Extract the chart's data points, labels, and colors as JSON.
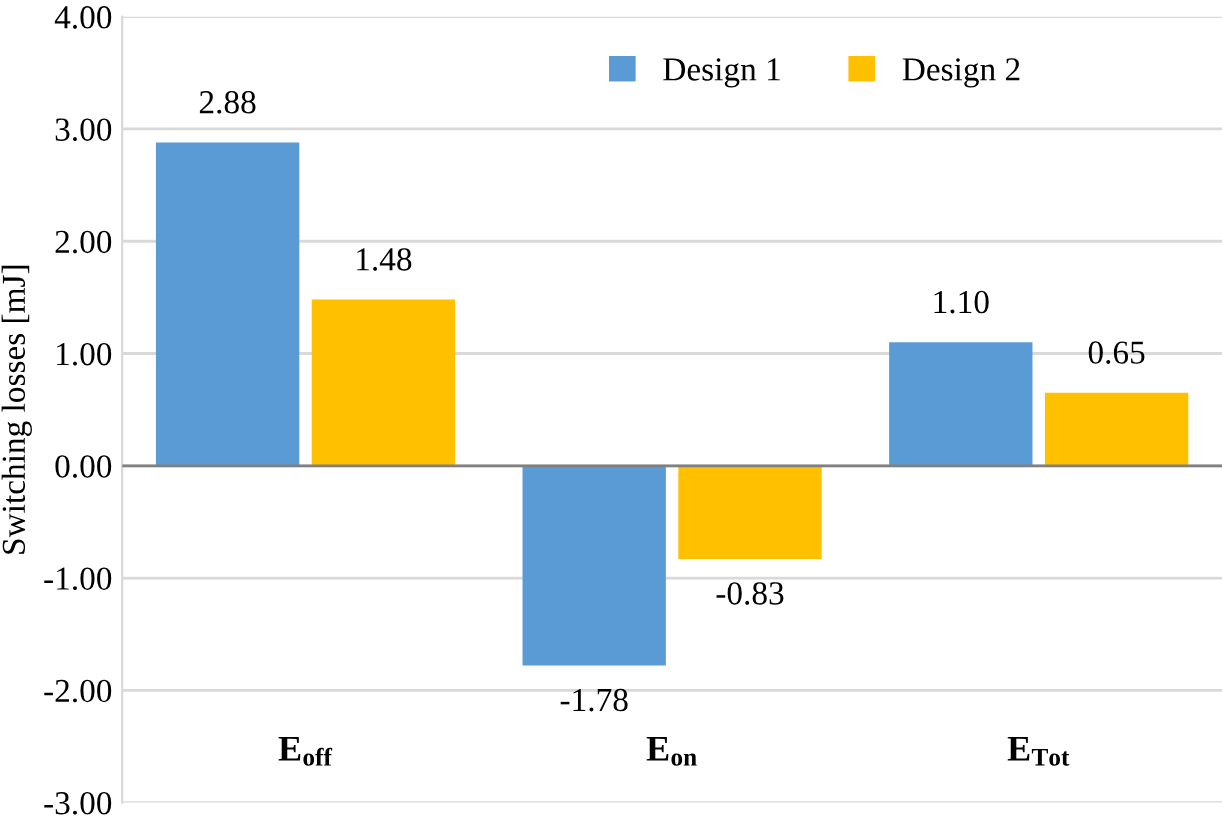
{
  "chart_data": {
    "type": "bar",
    "ylabel": "Switching losses [mJ]",
    "categories": [
      "E$_{off}$",
      "E$_{on}$",
      "E$_{Tot}$"
    ],
    "series": [
      {
        "name": "Design 1",
        "color": "#5b9bd5",
        "values": [
          2.88,
          -1.78,
          1.1
        ],
        "value_labels": [
          "2.88",
          "-1.78",
          "1.10"
        ]
      },
      {
        "name": "Design 2",
        "color": "#ffc000",
        "values": [
          1.48,
          -0.83,
          0.65
        ],
        "value_labels": [
          "1.48",
          "-0.83",
          "0.65"
        ]
      }
    ],
    "ylim": [
      -3,
      4
    ],
    "yticks": [
      {
        "value": -3,
        "label": "-3.00"
      },
      {
        "value": -2,
        "label": "-2.00"
      },
      {
        "value": -1,
        "label": "-1.00"
      },
      {
        "value": 0,
        "label": "0.00"
      },
      {
        "value": 1,
        "label": "1.00"
      },
      {
        "value": 2,
        "label": "2.00"
      },
      {
        "value": 3,
        "label": "3.00"
      },
      {
        "value": 4,
        "label": "4.00"
      }
    ],
    "grid": "y",
    "legend": "top"
  }
}
